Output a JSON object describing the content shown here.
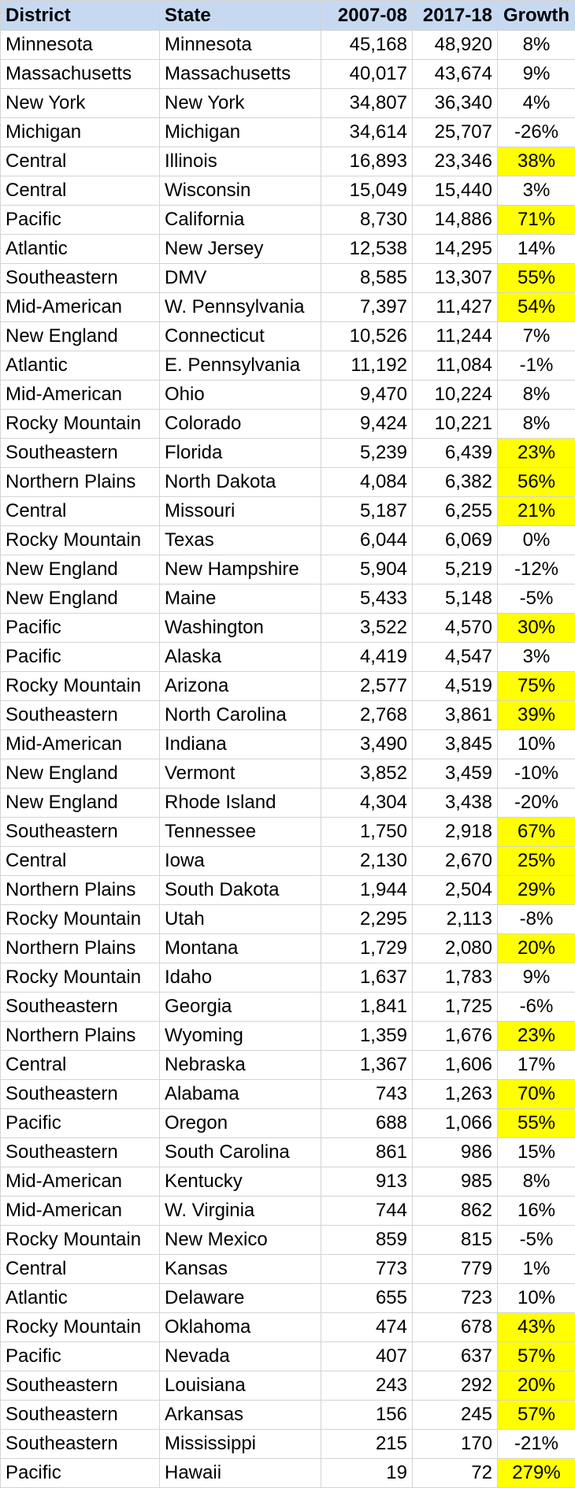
{
  "headers": {
    "district": "District",
    "state": "State",
    "y2007": "2007-08",
    "y2017": "2017-18",
    "growth": "Growth"
  },
  "highlight_color": "#ffff00",
  "header_color": "#c6d9f1",
  "rows": [
    {
      "district": "Minnesota",
      "state": "Minnesota",
      "y2007": "45,168",
      "y2017": "48,920",
      "growth": "8%",
      "highlight": false
    },
    {
      "district": "Massachusetts",
      "state": "Massachusetts",
      "y2007": "40,017",
      "y2017": "43,674",
      "growth": "9%",
      "highlight": false
    },
    {
      "district": "New York",
      "state": "New York",
      "y2007": "34,807",
      "y2017": "36,340",
      "growth": "4%",
      "highlight": false
    },
    {
      "district": "Michigan",
      "state": "Michigan",
      "y2007": "34,614",
      "y2017": "25,707",
      "growth": "-26%",
      "highlight": false
    },
    {
      "district": "Central",
      "state": "Illinois",
      "y2007": "16,893",
      "y2017": "23,346",
      "growth": "38%",
      "highlight": true
    },
    {
      "district": "Central",
      "state": "Wisconsin",
      "y2007": "15,049",
      "y2017": "15,440",
      "growth": "3%",
      "highlight": false
    },
    {
      "district": "Pacific",
      "state": "California",
      "y2007": "8,730",
      "y2017": "14,886",
      "growth": "71%",
      "highlight": true
    },
    {
      "district": "Atlantic",
      "state": "New Jersey",
      "y2007": "12,538",
      "y2017": "14,295",
      "growth": "14%",
      "highlight": false
    },
    {
      "district": "Southeastern",
      "state": "DMV",
      "y2007": "8,585",
      "y2017": "13,307",
      "growth": "55%",
      "highlight": true
    },
    {
      "district": "Mid-American",
      "state": "W. Pennsylvania",
      "y2007": "7,397",
      "y2017": "11,427",
      "growth": "54%",
      "highlight": true
    },
    {
      "district": "New England",
      "state": "Connecticut",
      "y2007": "10,526",
      "y2017": "11,244",
      "growth": "7%",
      "highlight": false
    },
    {
      "district": "Atlantic",
      "state": "E. Pennsylvania",
      "y2007": "11,192",
      "y2017": "11,084",
      "growth": "-1%",
      "highlight": false
    },
    {
      "district": "Mid-American",
      "state": "Ohio",
      "y2007": "9,470",
      "y2017": "10,224",
      "growth": "8%",
      "highlight": false
    },
    {
      "district": "Rocky Mountain",
      "state": "Colorado",
      "y2007": "9,424",
      "y2017": "10,221",
      "growth": "8%",
      "highlight": false
    },
    {
      "district": "Southeastern",
      "state": "Florida",
      "y2007": "5,239",
      "y2017": "6,439",
      "growth": "23%",
      "highlight": true
    },
    {
      "district": "Northern Plains",
      "state": "North Dakota",
      "y2007": "4,084",
      "y2017": "6,382",
      "growth": "56%",
      "highlight": true
    },
    {
      "district": "Central",
      "state": "Missouri",
      "y2007": "5,187",
      "y2017": "6,255",
      "growth": "21%",
      "highlight": true
    },
    {
      "district": "Rocky Mountain",
      "state": "Texas",
      "y2007": "6,044",
      "y2017": "6,069",
      "growth": "0%",
      "highlight": false
    },
    {
      "district": "New England",
      "state": "New Hampshire",
      "y2007": "5,904",
      "y2017": "5,219",
      "growth": "-12%",
      "highlight": false
    },
    {
      "district": "New England",
      "state": "Maine",
      "y2007": "5,433",
      "y2017": "5,148",
      "growth": "-5%",
      "highlight": false
    },
    {
      "district": "Pacific",
      "state": "Washington",
      "y2007": "3,522",
      "y2017": "4,570",
      "growth": "30%",
      "highlight": true
    },
    {
      "district": "Pacific",
      "state": "Alaska",
      "y2007": "4,419",
      "y2017": "4,547",
      "growth": "3%",
      "highlight": false
    },
    {
      "district": "Rocky Mountain",
      "state": "Arizona",
      "y2007": "2,577",
      "y2017": "4,519",
      "growth": "75%",
      "highlight": true
    },
    {
      "district": "Southeastern",
      "state": "North Carolina",
      "y2007": "2,768",
      "y2017": "3,861",
      "growth": "39%",
      "highlight": true
    },
    {
      "district": "Mid-American",
      "state": "Indiana",
      "y2007": "3,490",
      "y2017": "3,845",
      "growth": "10%",
      "highlight": false
    },
    {
      "district": "New England",
      "state": "Vermont",
      "y2007": "3,852",
      "y2017": "3,459",
      "growth": "-10%",
      "highlight": false
    },
    {
      "district": "New England",
      "state": "Rhode Island",
      "y2007": "4,304",
      "y2017": "3,438",
      "growth": "-20%",
      "highlight": false
    },
    {
      "district": "Southeastern",
      "state": "Tennessee",
      "y2007": "1,750",
      "y2017": "2,918",
      "growth": "67%",
      "highlight": true
    },
    {
      "district": "Central",
      "state": "Iowa",
      "y2007": "2,130",
      "y2017": "2,670",
      "growth": "25%",
      "highlight": true
    },
    {
      "district": "Northern Plains",
      "state": "South Dakota",
      "y2007": "1,944",
      "y2017": "2,504",
      "growth": "29%",
      "highlight": true
    },
    {
      "district": "Rocky Mountain",
      "state": "Utah",
      "y2007": "2,295",
      "y2017": "2,113",
      "growth": "-8%",
      "highlight": false
    },
    {
      "district": "Northern Plains",
      "state": "Montana",
      "y2007": "1,729",
      "y2017": "2,080",
      "growth": "20%",
      "highlight": true
    },
    {
      "district": "Rocky Mountain",
      "state": "Idaho",
      "y2007": "1,637",
      "y2017": "1,783",
      "growth": "9%",
      "highlight": false
    },
    {
      "district": "Southeastern",
      "state": "Georgia",
      "y2007": "1,841",
      "y2017": "1,725",
      "growth": "-6%",
      "highlight": false
    },
    {
      "district": "Northern Plains",
      "state": "Wyoming",
      "y2007": "1,359",
      "y2017": "1,676",
      "growth": "23%",
      "highlight": true
    },
    {
      "district": "Central",
      "state": "Nebraska",
      "y2007": "1,367",
      "y2017": "1,606",
      "growth": "17%",
      "highlight": false
    },
    {
      "district": "Southeastern",
      "state": "Alabama",
      "y2007": "743",
      "y2017": "1,263",
      "growth": "70%",
      "highlight": true
    },
    {
      "district": "Pacific",
      "state": "Oregon",
      "y2007": "688",
      "y2017": "1,066",
      "growth": "55%",
      "highlight": true
    },
    {
      "district": "Southeastern",
      "state": "South Carolina",
      "y2007": "861",
      "y2017": "986",
      "growth": "15%",
      "highlight": false
    },
    {
      "district": "Mid-American",
      "state": "Kentucky",
      "y2007": "913",
      "y2017": "985",
      "growth": "8%",
      "highlight": false
    },
    {
      "district": "Mid-American",
      "state": "W. Virginia",
      "y2007": "744",
      "y2017": "862",
      "growth": "16%",
      "highlight": false
    },
    {
      "district": "Rocky Mountain",
      "state": "New Mexico",
      "y2007": "859",
      "y2017": "815",
      "growth": "-5%",
      "highlight": false
    },
    {
      "district": "Central",
      "state": "Kansas",
      "y2007": "773",
      "y2017": "779",
      "growth": "1%",
      "highlight": false
    },
    {
      "district": "Atlantic",
      "state": "Delaware",
      "y2007": "655",
      "y2017": "723",
      "growth": "10%",
      "highlight": false
    },
    {
      "district": "Rocky Mountain",
      "state": "Oklahoma",
      "y2007": "474",
      "y2017": "678",
      "growth": "43%",
      "highlight": true
    },
    {
      "district": "Pacific",
      "state": "Nevada",
      "y2007": "407",
      "y2017": "637",
      "growth": "57%",
      "highlight": true
    },
    {
      "district": "Southeastern",
      "state": "Louisiana",
      "y2007": "243",
      "y2017": "292",
      "growth": "20%",
      "highlight": true
    },
    {
      "district": "Southeastern",
      "state": "Arkansas",
      "y2007": "156",
      "y2017": "245",
      "growth": "57%",
      "highlight": true
    },
    {
      "district": "Southeastern",
      "state": "Mississippi",
      "y2007": "215",
      "y2017": "170",
      "growth": "-21%",
      "highlight": false
    },
    {
      "district": "Pacific",
      "state": "Hawaii",
      "y2007": "19",
      "y2017": "72",
      "growth": "279%",
      "highlight": true
    }
  ]
}
